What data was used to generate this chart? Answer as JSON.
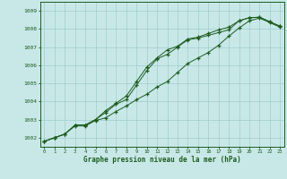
{
  "xlabel": "Graphe pression niveau de la mer (hPa)",
  "bg_color": "#c8e8e8",
  "grid_color": "#a0cccc",
  "line_color": "#1e5c1e",
  "x_ticks": [
    0,
    1,
    2,
    3,
    4,
    5,
    6,
    7,
    8,
    9,
    10,
    11,
    12,
    13,
    14,
    15,
    16,
    17,
    18,
    19,
    20,
    21,
    22,
    23
  ],
  "ylim": [
    1001.5,
    1009.5
  ],
  "xlim": [
    -0.4,
    23.4
  ],
  "yticks": [
    1002,
    1003,
    1004,
    1005,
    1006,
    1007,
    1008,
    1009
  ],
  "series1": [
    1001.8,
    1002.0,
    1002.2,
    1002.7,
    1002.7,
    1003.0,
    1003.5,
    1003.9,
    1004.3,
    1005.1,
    1005.9,
    1006.4,
    1006.85,
    1007.05,
    1007.45,
    1007.55,
    1007.75,
    1007.95,
    1008.1,
    1008.45,
    1008.62,
    1008.65,
    1008.4,
    1008.15
  ],
  "series2": [
    1001.8,
    1002.0,
    1002.2,
    1002.7,
    1002.7,
    1003.0,
    1003.4,
    1003.85,
    1004.1,
    1004.9,
    1005.7,
    1006.35,
    1006.6,
    1007.0,
    1007.4,
    1007.5,
    1007.65,
    1007.8,
    1007.95,
    1008.45,
    1008.62,
    1008.65,
    1008.4,
    1008.15
  ],
  "series3": [
    1001.8,
    1002.0,
    1002.2,
    1002.65,
    1002.65,
    1002.95,
    1003.1,
    1003.45,
    1003.75,
    1004.1,
    1004.4,
    1004.8,
    1005.1,
    1005.6,
    1006.1,
    1006.4,
    1006.7,
    1007.1,
    1007.6,
    1008.05,
    1008.45,
    1008.6,
    1008.35,
    1008.1
  ]
}
